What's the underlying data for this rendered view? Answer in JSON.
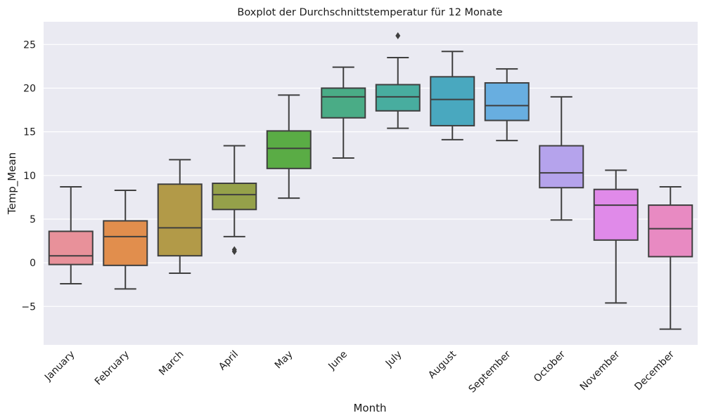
{
  "chart_data": {
    "type": "boxplot",
    "title": "Boxplot der Durchschnittstemperatur für 12 Monate",
    "xlabel": "Month",
    "ylabel": "Temp_Mean",
    "ylim": [
      -9.4,
      27.6
    ],
    "yticks": [
      -5,
      0,
      5,
      10,
      15,
      20,
      25
    ],
    "ytick_labels": [
      "−5",
      "0",
      "5",
      "10",
      "15",
      "20",
      "25"
    ],
    "grid": true,
    "background": "#eaeaf2",
    "categories": [
      "January",
      "February",
      "March",
      "April",
      "May",
      "June",
      "July",
      "August",
      "September",
      "October",
      "November",
      "December"
    ],
    "boxes": [
      {
        "label": "January",
        "color": "#e8919a",
        "whislo": -2.4,
        "q1": -0.2,
        "med": 0.8,
        "q3": 3.6,
        "whishi": 8.7,
        "fliers": []
      },
      {
        "label": "February",
        "color": "#e18e4d",
        "whislo": -3.0,
        "q1": -0.3,
        "med": 3.0,
        "q3": 4.8,
        "whishi": 8.3,
        "fliers": []
      },
      {
        "label": "March",
        "color": "#b29a48",
        "whislo": -1.2,
        "q1": 0.8,
        "med": 4.0,
        "q3": 9.0,
        "whishi": 11.8,
        "fliers": []
      },
      {
        "label": "April",
        "color": "#95a14a",
        "whislo": 3.0,
        "q1": 6.1,
        "med": 7.8,
        "q3": 9.1,
        "whishi": 13.4,
        "fliers": [
          1.3,
          1.5
        ]
      },
      {
        "label": "May",
        "color": "#5aac45",
        "whislo": 7.4,
        "q1": 10.8,
        "med": 13.1,
        "q3": 15.1,
        "whishi": 19.2,
        "fliers": []
      },
      {
        "label": "June",
        "color": "#4aac86",
        "whislo": 12.0,
        "q1": 16.6,
        "med": 19.0,
        "q3": 20.0,
        "whishi": 22.4,
        "fliers": []
      },
      {
        "label": "July",
        "color": "#48ad9f",
        "whislo": 15.4,
        "q1": 17.4,
        "med": 19.0,
        "q3": 20.4,
        "whishi": 23.5,
        "fliers": [
          26.0
        ]
      },
      {
        "label": "August",
        "color": "#49a8bf",
        "whislo": 14.1,
        "q1": 15.7,
        "med": 18.7,
        "q3": 21.3,
        "whishi": 24.2,
        "fliers": []
      },
      {
        "label": "September",
        "color": "#68aee0",
        "whislo": 14.0,
        "q1": 16.3,
        "med": 18.0,
        "q3": 20.6,
        "whishi": 22.2,
        "fliers": []
      },
      {
        "label": "October",
        "color": "#b5a3ec",
        "whislo": 4.9,
        "q1": 8.6,
        "med": 10.3,
        "q3": 13.4,
        "whishi": 19.0,
        "fliers": []
      },
      {
        "label": "November",
        "color": "#e08ae9",
        "whislo": -4.6,
        "q1": 2.6,
        "med": 6.6,
        "q3": 8.4,
        "whishi": 10.6,
        "fliers": []
      },
      {
        "label": "December",
        "color": "#e88ac2",
        "whislo": -7.6,
        "q1": 0.7,
        "med": 3.9,
        "q3": 6.6,
        "whishi": 8.7,
        "fliers": []
      }
    ]
  }
}
